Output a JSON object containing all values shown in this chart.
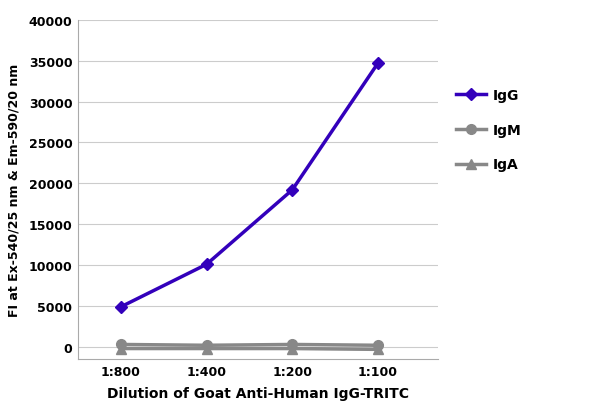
{
  "x_labels": [
    "1:800",
    "1:400",
    "1:200",
    "1:100"
  ],
  "x_values": [
    1,
    2,
    3,
    4
  ],
  "IgG_values": [
    4900,
    10100,
    19200,
    34700
  ],
  "IgM_values": [
    300,
    200,
    300,
    200
  ],
  "IgA_values": [
    -200,
    -200,
    -200,
    -300
  ],
  "IgG_color": "#3300BB",
  "IgM_color": "#888888",
  "IgA_color": "#888888",
  "line_width": 2.5,
  "IgG_marker": "D",
  "IgM_marker": "o",
  "IgA_marker": "^",
  "marker_size_IgG": 6,
  "marker_size_IgM": 7,
  "marker_size_IgA": 7,
  "xlabel": "Dilution of Goat Anti-Human IgG-TRITC",
  "ylabel": "FI at Ex-540/25 nm & Em-590/20 nm",
  "ylim": [
    -1500,
    40000
  ],
  "yticks": [
    0,
    5000,
    10000,
    15000,
    20000,
    25000,
    30000,
    35000,
    40000
  ],
  "legend_labels": [
    "IgG",
    "IgM",
    "IgA"
  ],
  "bg_color": "#ffffff",
  "grid_color": "#cccccc",
  "xlabel_fontsize": 10,
  "ylabel_fontsize": 9,
  "tick_fontsize": 9,
  "legend_fontsize": 10,
  "figsize": [
    6.0,
    4.14
  ],
  "dpi": 100
}
